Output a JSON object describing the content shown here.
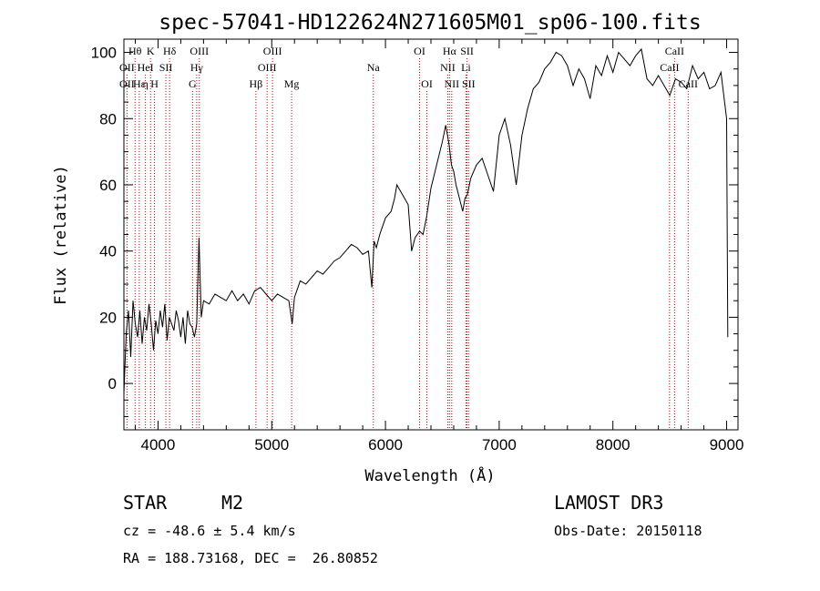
{
  "chart_data": {
    "type": "line",
    "title": "spec-57041-HD122624N271605M01_sp06-100.fits",
    "xlabel": "Wavelength (Å)",
    "ylabel": "Flux (relative)",
    "xlim": [
      3700,
      9100
    ],
    "ylim": [
      -14,
      104
    ],
    "xticks": [
      4000,
      5000,
      6000,
      7000,
      8000,
      9000
    ],
    "yticks": [
      0,
      20,
      40,
      60,
      80,
      100
    ],
    "grid": false,
    "series": [
      {
        "x": [
          3700,
          3720,
          3740,
          3760,
          3780,
          3800,
          3820,
          3840,
          3860,
          3880,
          3900,
          3920,
          3940,
          3960,
          3980,
          4000,
          4020,
          4040,
          4060,
          4080,
          4100,
          4120,
          4140,
          4160,
          4180,
          4200,
          4220,
          4240,
          4260,
          4280,
          4300,
          4320,
          4340,
          4360,
          4380,
          4400,
          4450,
          4500,
          4550,
          4600,
          4650,
          4700,
          4750,
          4800,
          4850,
          4900,
          4950,
          5000,
          5050,
          5100,
          5150,
          5180,
          5200,
          5250,
          5300,
          5350,
          5400,
          5450,
          5500,
          5550,
          5600,
          5650,
          5700,
          5750,
          5800,
          5850,
          5880,
          5900,
          5920,
          5950,
          6000,
          6050,
          6080,
          6100,
          6150,
          6200,
          6230,
          6260,
          6300,
          6330,
          6360,
          6400,
          6450,
          6500,
          6530,
          6560,
          6580,
          6600,
          6620,
          6650,
          6680,
          6700,
          6720,
          6750,
          6800,
          6850,
          6900,
          6950,
          7000,
          7050,
          7100,
          7150,
          7200,
          7250,
          7300,
          7350,
          7400,
          7450,
          7500,
          7550,
          7600,
          7650,
          7700,
          7750,
          7800,
          7850,
          7900,
          7950,
          8000,
          8050,
          8100,
          8150,
          8200,
          8250,
          8300,
          8350,
          8400,
          8450,
          8500,
          8550,
          8600,
          8650,
          8700,
          8750,
          8800,
          8850,
          8900,
          8950,
          9000,
          9010
        ],
        "y": [
          -3,
          15,
          22,
          8,
          25,
          18,
          14,
          22,
          12,
          20,
          16,
          24,
          18,
          10,
          19,
          15,
          22,
          17,
          24,
          13,
          20,
          18,
          16,
          22,
          19,
          14,
          20,
          12,
          22,
          18,
          17,
          14,
          18,
          44,
          20,
          25,
          24,
          27,
          26,
          25,
          28,
          25,
          27,
          24,
          28,
          29,
          27,
          25,
          27,
          26,
          25,
          18,
          26,
          31,
          30,
          32,
          34,
          33,
          35,
          37,
          38,
          40,
          42,
          41,
          39,
          40,
          29,
          43,
          41,
          45,
          50,
          52,
          56,
          60,
          57,
          54,
          40,
          44,
          46,
          45,
          50,
          59,
          66,
          73,
          78,
          72,
          66,
          64,
          60,
          56,
          52,
          56,
          57,
          62,
          66,
          68,
          63,
          58,
          75,
          80,
          72,
          60,
          75,
          83,
          89,
          91,
          95,
          97,
          100,
          99,
          96,
          90,
          95,
          92,
          86,
          96,
          93,
          99,
          94,
          100,
          98,
          96,
          99,
          101,
          92,
          90,
          93,
          90,
          87,
          92,
          91,
          89,
          96,
          92,
          94,
          89,
          90,
          94,
          80,
          14
        ]
      }
    ],
    "line_markers": [
      {
        "label": "Hθ",
        "x": 3798,
        "row": 0
      },
      {
        "label": "OII",
        "x": 3727,
        "row": 1
      },
      {
        "label": "OII",
        "x": 3727,
        "row": 2
      },
      {
        "label": "Hε",
        "x": 3835,
        "row": 2
      },
      {
        "label": "HeI",
        "x": 3889,
        "row": 1
      },
      {
        "label": "K",
        "x": 3934,
        "row": 0
      },
      {
        "label": "η",
        "x": 3889,
        "row": 2
      },
      {
        "label": "SII",
        "x": 4069,
        "row": 1
      },
      {
        "label": "H",
        "x": 3969,
        "row": 2
      },
      {
        "label": "Hδ",
        "x": 4102,
        "row": 0
      },
      {
        "label": "OIII",
        "x": 4363,
        "row": 0
      },
      {
        "label": "Hγ",
        "x": 4340,
        "row": 1
      },
      {
        "label": "G",
        "x": 4304,
        "row": 2
      },
      {
        "label": "Hβ",
        "x": 4861,
        "row": 2
      },
      {
        "label": "OIII",
        "x": 5007,
        "row": 0
      },
      {
        "label": "OIII",
        "x": 4959,
        "row": 1
      },
      {
        "label": "Mg",
        "x": 5175,
        "row": 2
      },
      {
        "label": "Na",
        "x": 5893,
        "row": 1
      },
      {
        "label": "OI",
        "x": 6300,
        "row": 0
      },
      {
        "label": "OI",
        "x": 6364,
        "row": 2
      },
      {
        "label": "Hα",
        "x": 6563,
        "row": 0
      },
      {
        "label": "SII",
        "x": 6717,
        "row": 0
      },
      {
        "label": "NII",
        "x": 6548,
        "row": 1
      },
      {
        "label": "Li",
        "x": 6708,
        "row": 1
      },
      {
        "label": "NII",
        "x": 6583,
        "row": 2
      },
      {
        "label": "SII",
        "x": 6731,
        "row": 2
      },
      {
        "label": "CaII",
        "x": 8542,
        "row": 0
      },
      {
        "label": "CaII",
        "x": 8498,
        "row": 1
      },
      {
        "label": "CaII",
        "x": 8662,
        "row": 2
      }
    ]
  },
  "info": {
    "object_class": "STAR",
    "subclass": "M2",
    "survey": "LAMOST DR3",
    "cz": "cz = -48.6 ± 5.4 km/s",
    "obs_date": "Obs-Date: 20150118",
    "coords": "RA = 188.73168, DEC =  26.80852"
  }
}
